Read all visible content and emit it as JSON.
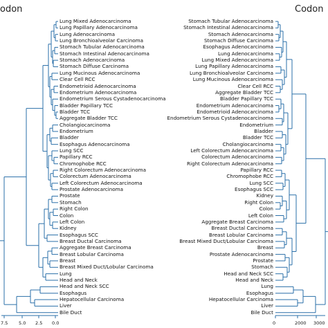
{
  "left_panel": {
    "title": "odon",
    "leaves": [
      "Lung Mixed Adenocarcinoma",
      "Lung Papillary Adenocarcinoma",
      "Lung Adenocarcinoma",
      "Lung Bronchioalveolar Carcinoma",
      "Stomach Tubular Adenocarcinoma",
      "Stomach Intestinal Adenocarcinoma",
      "Stomach Adenocarcinoma",
      "Stomach Diffuse Carcinoma",
      "Lung Mucinous Adenocarcinoma",
      "Clear Cell RCC",
      "Endometrioid Adenocarcinoma",
      "Endometrium Adenocarcinoma",
      "Endometrium Serous Cystadenocarcinoma",
      "Bladder Papillary TCC",
      "Bladder TCC",
      "Aggregate Bladder TCC",
      "Cholangiocarcinoma",
      "Endometrium",
      "Bladder",
      "Esophagus Adenocarcinoma",
      "Lung SCC",
      "Papillary RCC",
      "Chromophobe RCC",
      "Right Colorectum Adenocarcinoma",
      "Colorectum Adenocarcinoma",
      "Left Colorectum Adenocarcinoma",
      "Prostate Adenocarcinoma",
      "Prostate",
      "Stomach",
      "Right Colon",
      "Colon",
      "Left Colon",
      "Kidney",
      "Esophagus SCC",
      "Breast Ductal Carcinoma",
      "Aggregate Breast Carcinoma",
      "Breast Lobular Carcinoma",
      "Breast",
      "Breast Mixed Duct/Lobular Carcinoma",
      "Lung",
      "Head and Neck",
      "Head and Neck SCC",
      "Esophagus",
      "Hepatocellular Carcinoma",
      "Liver",
      "Bile Duct"
    ],
    "axis_ticks": [
      "7.5",
      "5.0",
      "2.5",
      "0.0"
    ]
  },
  "right_panel": {
    "title": "Codon",
    "leaves": [
      "Stomach Tubular Adenocarcinoma",
      "Stomach Intestinal Adenocarcinoma",
      "Stomach Adenocarcinoma",
      "Stomach Diffuse Carcinoma",
      "Esophagus Adenocarcinoma",
      "Lung Adenocarcinoma",
      "Lung Mixed Adenocarcinoma",
      "Lung Papillary Adenocarcinoma",
      "Lung Bronchioalveolar Carcinoma",
      "Lung Mucinous Adenocarcinoma",
      "Clear Cell RCC",
      "Aggregate Bladder TCC",
      "Bladder Papillary TCC",
      "Endometrium Adenocarcinoma",
      "Endometrioid Adenocarcinoma",
      "Endometrium Serous Cystadenocarcinoma",
      "Endometrium",
      "Bladder",
      "Bladder TCC",
      "Cholangiocarcinoma",
      "Left Colorectum Adenocarcinoma",
      "Colorectum Adenocarcinoma",
      "Right Colorectum Adenocarcinoma",
      "Papillary RCC",
      "Chromophobe RCC",
      "Lung SCC",
      "Esophagus SCC",
      "Kidney",
      "Right Colon",
      "Colon",
      "Left Colon",
      "Aggregate Breast Carcinoma",
      "Breast Ductal Carcinoma",
      "Breast Lobular Carcinoma",
      "Breast Mixed Duct/Lobular Carcinoma",
      "Breast",
      "Prostate Adenocarcinoma",
      "Prostate",
      "Stomach",
      "Head and Neck SCC",
      "Head and Neck",
      "Lung",
      "Esophagus",
      "Hepatocellular Carcinoma",
      "Liver",
      "Bile Duct"
    ],
    "axis_ticks": [
      "0",
      "2000",
      "3000"
    ]
  },
  "colors": {
    "branch": "#2a6fa8",
    "text": "#111111"
  }
}
